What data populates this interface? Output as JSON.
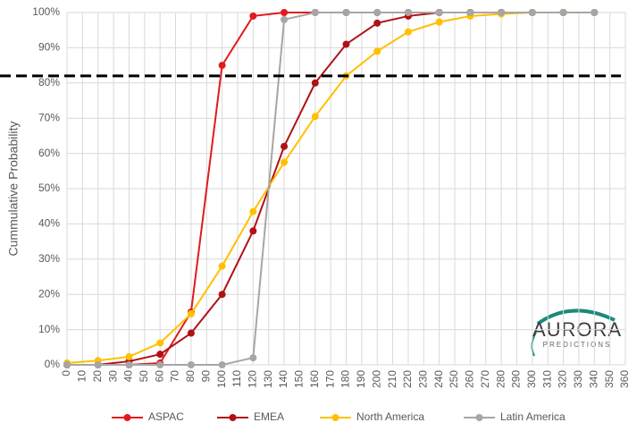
{
  "chart_data": {
    "type": "line",
    "y_label": "Cummulative Probability",
    "x": [
      0,
      20,
      40,
      60,
      80,
      100,
      120,
      140,
      160,
      180,
      200,
      220,
      240,
      260,
      280,
      300,
      320,
      340
    ],
    "series": [
      {
        "name": "ASPAC",
        "color": "#e31a1c",
        "values": [
          0,
          0,
          0,
          0.5,
          15,
          85,
          99,
          100,
          100,
          100,
          100,
          100,
          100,
          100,
          100,
          100,
          100,
          100
        ]
      },
      {
        "name": "EMEA",
        "color": "#b01116",
        "values": [
          0,
          0,
          1,
          3,
          9,
          20,
          38,
          62,
          80,
          91,
          97,
          99,
          100,
          100,
          100,
          100,
          100,
          100
        ]
      },
      {
        "name": "North America",
        "color": "#ffc000",
        "values": [
          0.5,
          1.2,
          2.3,
          6.2,
          14.5,
          28,
          43.5,
          57.5,
          70.5,
          82,
          89,
          94.5,
          97.3,
          99,
          99.6,
          100,
          100,
          100
        ]
      },
      {
        "name": "Latin America",
        "color": "#a6a6a6",
        "values": [
          0,
          0,
          0,
          0,
          0,
          0,
          2,
          98,
          100,
          100,
          100,
          100,
          100,
          100,
          100,
          100,
          100,
          100
        ]
      }
    ],
    "reference_line": 82,
    "xlim": [
      0,
      360
    ],
    "xticks": [
      0,
      10,
      20,
      30,
      40,
      50,
      60,
      70,
      80,
      90,
      100,
      110,
      120,
      130,
      140,
      150,
      160,
      170,
      180,
      190,
      200,
      210,
      220,
      230,
      240,
      250,
      260,
      270,
      280,
      290,
      300,
      310,
      320,
      330,
      340,
      350,
      360
    ],
    "ylim": [
      0,
      100
    ],
    "yticks": [
      {
        "value": 0,
        "label": "0%"
      },
      {
        "value": 10,
        "label": "10%"
      },
      {
        "value": 20,
        "label": "20%"
      },
      {
        "value": 30,
        "label": "30%"
      },
      {
        "value": 40,
        "label": "40%"
      },
      {
        "value": 50,
        "label": "50%"
      },
      {
        "value": 60,
        "label": "60%"
      },
      {
        "value": 70,
        "label": "70%"
      },
      {
        "value": 80,
        "label": "80%"
      },
      {
        "value": 90,
        "label": "90%"
      },
      {
        "value": 100,
        "label": "100%"
      }
    ],
    "grid": true
  },
  "logo": {
    "title": "AURORA",
    "subtitle": "PREDICTIONS"
  }
}
